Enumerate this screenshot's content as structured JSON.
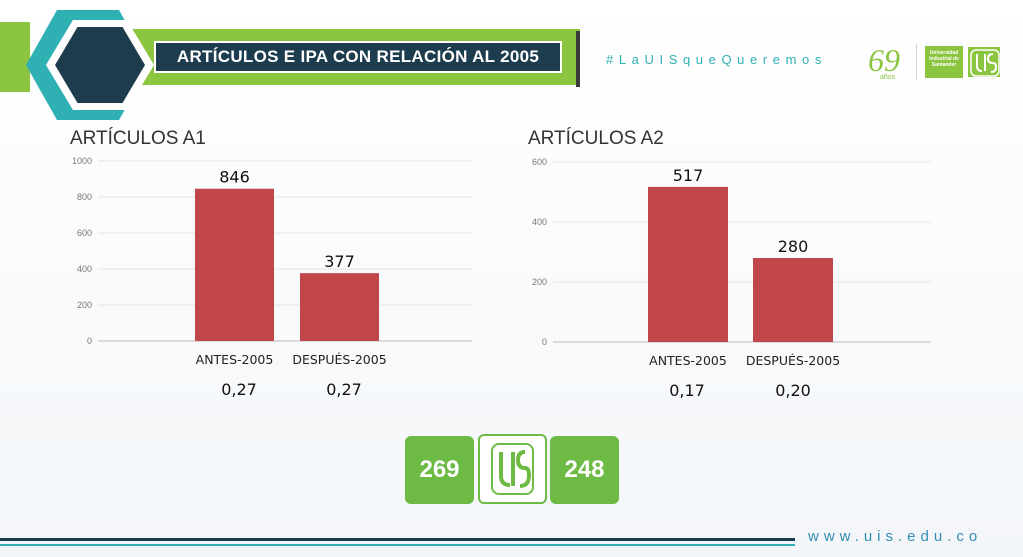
{
  "header": {
    "title": "ARTÍCULOS E IPA CON RELACIÓN AL 2005",
    "hashtag": "#LaUISqueQueremos",
    "logo_69_number": "69",
    "logo_69_caption": "años",
    "university_name": "Universidad Industrial de Santander"
  },
  "colors": {
    "accent_green": "#8cc53f",
    "navy": "#1d3d4f",
    "teal": "#2fb1b4",
    "bar": "#c0464a"
  },
  "chart_data": [
    {
      "type": "bar",
      "title": "ARTÍCULOS A1",
      "categories": [
        "ANTES-2005",
        "DESPUÉS-2005"
      ],
      "values": [
        846,
        377
      ],
      "value_labels": [
        "846",
        "377"
      ],
      "ratios": [
        "0,27",
        "0,27"
      ],
      "ylim": [
        0,
        1000
      ],
      "yticks": [
        0,
        200,
        400,
        600,
        800,
        1000
      ],
      "grid": true,
      "color": "#c0464a"
    },
    {
      "type": "bar",
      "title": "ARTÍCULOS A2",
      "categories": [
        "ANTES-2005",
        "DESPUÉS-2005"
      ],
      "values": [
        517,
        280
      ],
      "value_labels": [
        "517",
        "280"
      ],
      "ratios": [
        "0,17",
        "0,20"
      ],
      "ylim": [
        0,
        600
      ],
      "yticks": [
        0,
        200,
        400,
        600
      ],
      "grid": true,
      "color": "#c0464a"
    }
  ],
  "badges": {
    "left_value": "269",
    "right_value": "248"
  },
  "footer": {
    "url": "www.uis.edu.co"
  }
}
